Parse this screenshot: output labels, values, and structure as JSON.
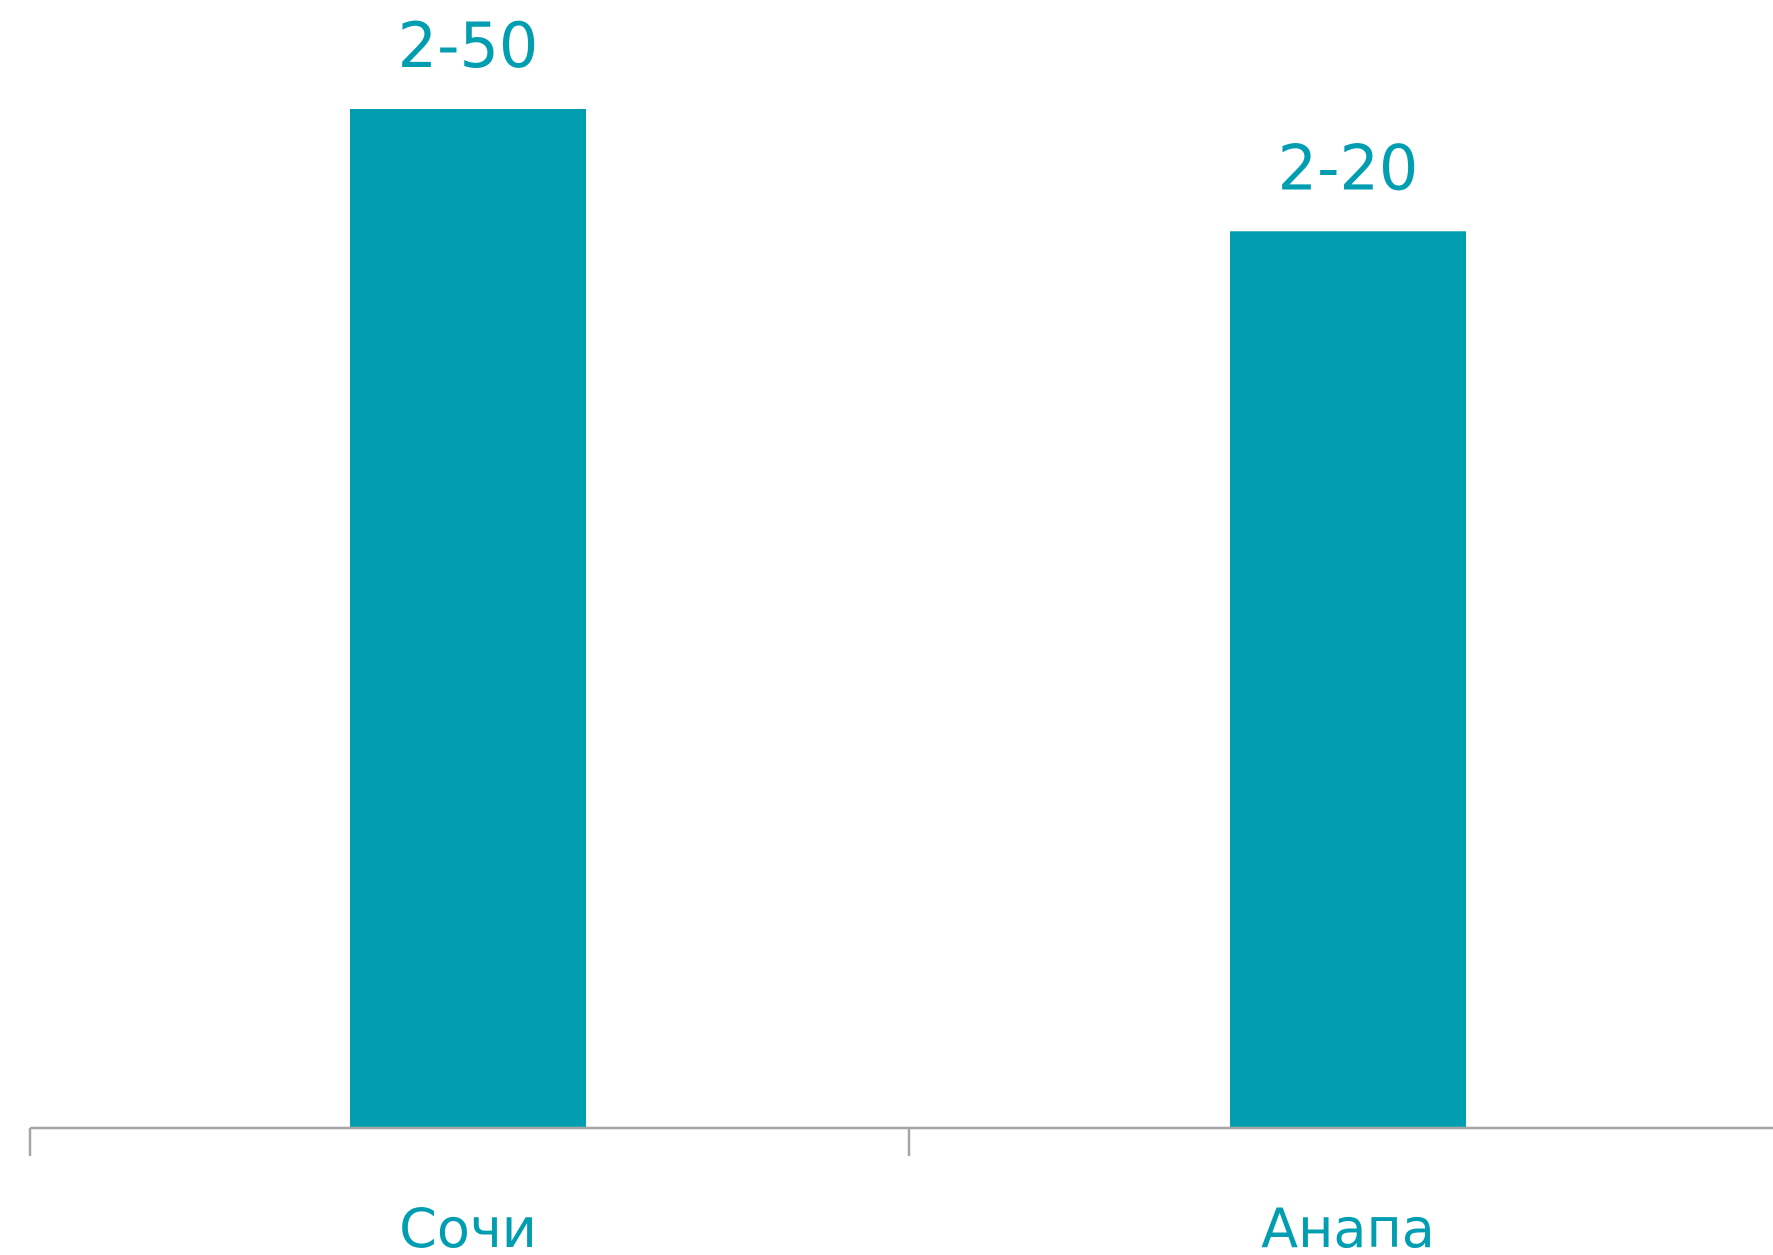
{
  "chart_data": {
    "type": "bar",
    "categories": [
      "Сочи",
      "Анапа"
    ],
    "values": [
      250,
      220
    ],
    "data_labels": [
      "2-50",
      "2-20"
    ],
    "title": "",
    "xlabel": "",
    "ylabel": "",
    "ylim": [
      0,
      250
    ],
    "grid": false,
    "legend": "none"
  },
  "colors": {
    "bar": "#009eb0",
    "label": "#009eb0",
    "axis": "#a6a6a6"
  }
}
